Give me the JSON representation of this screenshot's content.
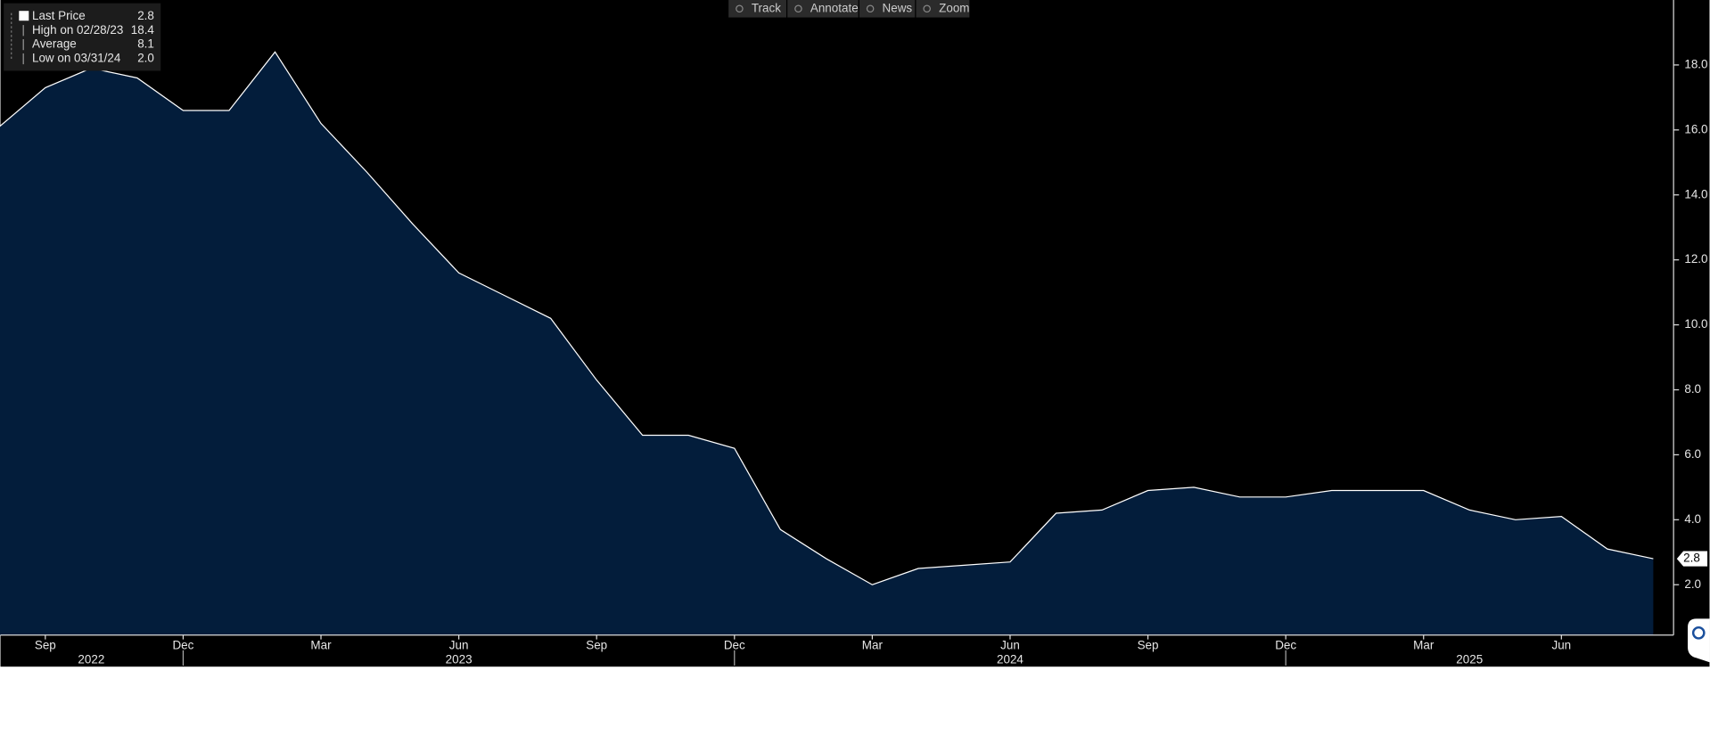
{
  "toolbar": [
    "Track",
    "Annotate",
    "News",
    "Zoom"
  ],
  "chart_data": {
    "type": "area",
    "x": [
      "2022-08",
      "2022-09",
      "2022-10",
      "2022-11",
      "2022-12",
      "2023-01",
      "2023-02",
      "2023-03",
      "2023-04",
      "2023-05",
      "2023-06",
      "2023-07",
      "2023-08",
      "2023-09",
      "2023-10",
      "2023-11",
      "2023-12",
      "2024-01",
      "2024-02",
      "2024-03",
      "2024-04",
      "2024-05",
      "2024-06",
      "2024-07",
      "2024-08",
      "2024-09",
      "2024-10",
      "2024-11",
      "2024-12",
      "2025-01",
      "2025-02",
      "2025-03",
      "2025-04",
      "2025-05",
      "2025-06",
      "2025-07",
      "2025-08"
    ],
    "series": [
      {
        "name": "Last Price",
        "color": "#ffffff",
        "fill": "#031d3b",
        "values": [
          16.1,
          17.3,
          17.9,
          17.6,
          16.6,
          16.6,
          18.4,
          16.2,
          14.7,
          13.1,
          11.6,
          10.9,
          10.2,
          8.3,
          6.6,
          6.6,
          6.2,
          3.7,
          2.8,
          2.0,
          2.5,
          2.6,
          2.7,
          4.2,
          4.3,
          4.9,
          5.0,
          4.7,
          4.7,
          4.9,
          4.9,
          4.9,
          4.3,
          4.0,
          4.1,
          3.1,
          2.8
        ]
      }
    ],
    "legend": [
      {
        "name": "Last Price",
        "value": 2.8,
        "label": "2.8"
      },
      {
        "name": "High on 02/28/23",
        "value": 18.4,
        "label": "18.4"
      },
      {
        "name": "Average",
        "value": 8.1,
        "label": "8.1"
      },
      {
        "name": "Low on 03/31/24",
        "value": 2.0,
        "label": "2.0"
      }
    ],
    "ylim": [
      0.45,
      20
    ],
    "yticks": [
      {
        "value": 2,
        "label": "2.0"
      },
      {
        "value": 4,
        "label": "4.0"
      },
      {
        "value": 6,
        "label": "6.0"
      },
      {
        "value": 8,
        "label": "8.0"
      },
      {
        "value": 10,
        "label": "10.0"
      },
      {
        "value": 12,
        "label": "12.0"
      },
      {
        "value": 14,
        "label": "14.0"
      },
      {
        "value": 16,
        "label": "16.0"
      },
      {
        "value": 18,
        "label": "18.0"
      }
    ],
    "xticks": [
      {
        "value": "2022-09",
        "label": "Sep"
      },
      {
        "value": "2022-12",
        "label": "Dec"
      },
      {
        "value": "2023-03",
        "label": "Mar"
      },
      {
        "value": "2023-06",
        "label": "Jun"
      },
      {
        "value": "2023-09",
        "label": "Sep"
      },
      {
        "value": "2023-12",
        "label": "Dec"
      },
      {
        "value": "2024-03",
        "label": "Mar"
      },
      {
        "value": "2024-06",
        "label": "Jun"
      },
      {
        "value": "2024-09",
        "label": "Sep"
      },
      {
        "value": "2024-12",
        "label": "Dec"
      },
      {
        "value": "2025-03",
        "label": "Mar"
      },
      {
        "value": "2025-06",
        "label": "Jun"
      }
    ],
    "years": [
      {
        "value": "2022-10",
        "label": "2022"
      },
      {
        "value": "2023-06",
        "label": "2023"
      },
      {
        "value": "2024-06",
        "label": "2024"
      },
      {
        "value": "2025-04",
        "label": "2025"
      }
    ]
  }
}
